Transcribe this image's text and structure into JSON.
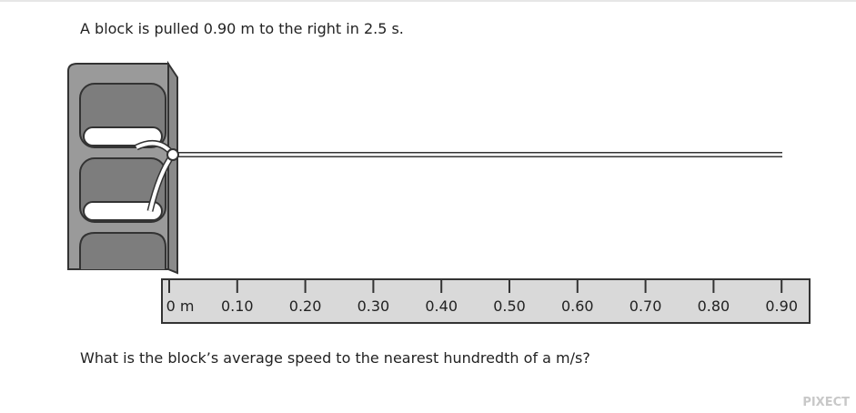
{
  "question": "A block is pulled 0.90 m to the right in 2.5 s.",
  "ruler": {
    "labels": [
      "0 m",
      "0.10",
      "0.20",
      "0.30",
      "0.40",
      "0.50",
      "0.60",
      "0.70",
      "0.80",
      "0.90"
    ]
  },
  "prompt": "What is the block’s average speed to the nearest hundredth of a m/s?",
  "watermark": "PIXECT"
}
